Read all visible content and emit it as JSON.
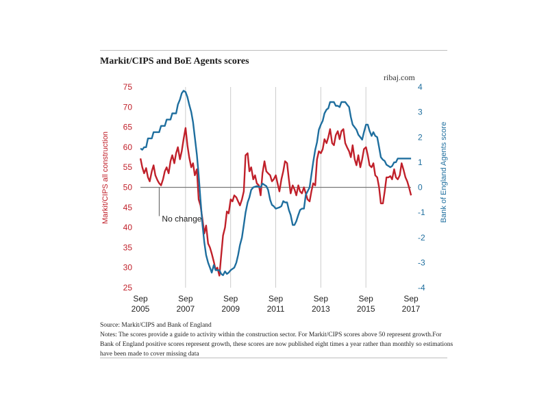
{
  "title": "Markit/CIPS and BoE Agents scores",
  "credit": "ribaj.com",
  "source": "Source: Markit/CIPS and Bank of England",
  "notes": "Notes: The scores provide a guide to activity within the construction sector. For Markit/CIPS scores above 50 represent growth.For Bank of England positive scores represent growth, these scores are now published eight times a year rather than monthly so estimations have been made to cover missing data",
  "colors": {
    "markit": "#c0202a",
    "boe": "#1e6e9e",
    "grid": "#cccccc",
    "baseline": "#777777"
  },
  "chart_data": {
    "type": "line",
    "ylabel_left": "Markit/CIPS all construction",
    "ylabel_right": "Bank of England Agents score",
    "ylim_left": [
      25,
      75
    ],
    "ylim_right": [
      -4,
      4
    ],
    "yticks_left": [
      25,
      30,
      35,
      40,
      45,
      50,
      55,
      60,
      65,
      70,
      75
    ],
    "yticks_right": [
      -4,
      -3,
      -2,
      -1,
      0,
      1,
      2,
      3,
      4
    ],
    "xlim": [
      2005.667,
      2017.667
    ],
    "xticks": [
      {
        "value": 2005.667,
        "line1": "Sep",
        "line2": "2005"
      },
      {
        "value": 2007.667,
        "line1": "Sep",
        "line2": "2007"
      },
      {
        "value": 2009.667,
        "line1": "Sep",
        "line2": "2009"
      },
      {
        "value": 2011.667,
        "line1": "Sep",
        "line2": "2011"
      },
      {
        "value": 2013.667,
        "line1": "Sep",
        "line2": "2013"
      },
      {
        "value": 2015.667,
        "line1": "Sep",
        "line2": "2015"
      },
      {
        "value": 2017.667,
        "line1": "Sep",
        "line2": "2017"
      }
    ],
    "grid_x": true,
    "reference_line": {
      "value": 50,
      "axis": "left"
    },
    "annotation": {
      "text": "No change",
      "x": 2006.5,
      "y": 50
    },
    "series": [
      {
        "name": "Markit/CIPS all construction",
        "axis": "left",
        "color": "#c0202a",
        "points": [
          [
            2005.67,
            57.2
          ],
          [
            2005.75,
            55.0
          ],
          [
            2005.83,
            53.5
          ],
          [
            2005.92,
            54.8
          ],
          [
            2006.0,
            52.5
          ],
          [
            2006.08,
            51.5
          ],
          [
            2006.17,
            54.0
          ],
          [
            2006.25,
            55.5
          ],
          [
            2006.33,
            53.0
          ],
          [
            2006.42,
            51.8
          ],
          [
            2006.5,
            51.0
          ],
          [
            2006.58,
            50.5
          ],
          [
            2006.67,
            52.0
          ],
          [
            2006.75,
            54.0
          ],
          [
            2006.83,
            55.0
          ],
          [
            2006.92,
            53.5
          ],
          [
            2007.0,
            56.5
          ],
          [
            2007.08,
            58.0
          ],
          [
            2007.17,
            56.0
          ],
          [
            2007.25,
            58.5
          ],
          [
            2007.33,
            60.0
          ],
          [
            2007.42,
            57.0
          ],
          [
            2007.5,
            59.0
          ],
          [
            2007.58,
            62.0
          ],
          [
            2007.67,
            64.8
          ],
          [
            2007.75,
            60.5
          ],
          [
            2007.83,
            57.5
          ],
          [
            2007.92,
            55.0
          ],
          [
            2008.0,
            56.0
          ],
          [
            2008.08,
            53.0
          ],
          [
            2008.17,
            54.5
          ],
          [
            2008.25,
            47.0
          ],
          [
            2008.33,
            45.5
          ],
          [
            2008.42,
            42.0
          ],
          [
            2008.5,
            38.5
          ],
          [
            2008.58,
            40.5
          ],
          [
            2008.67,
            36.0
          ],
          [
            2008.75,
            35.0
          ],
          [
            2008.83,
            33.5
          ],
          [
            2008.92,
            31.5
          ],
          [
            2009.0,
            29.5
          ],
          [
            2009.08,
            30.0
          ],
          [
            2009.17,
            28.0
          ],
          [
            2009.25,
            33.0
          ],
          [
            2009.33,
            38.0
          ],
          [
            2009.42,
            40.0
          ],
          [
            2009.5,
            44.0
          ],
          [
            2009.58,
            43.5
          ],
          [
            2009.67,
            47.0
          ],
          [
            2009.75,
            46.5
          ],
          [
            2009.83,
            48.0
          ],
          [
            2009.92,
            47.5
          ],
          [
            2010.0,
            46.5
          ],
          [
            2010.08,
            45.5
          ],
          [
            2010.17,
            47.0
          ],
          [
            2010.25,
            49.0
          ],
          [
            2010.33,
            58.0
          ],
          [
            2010.42,
            58.5
          ],
          [
            2010.5,
            54.0
          ],
          [
            2010.58,
            55.0
          ],
          [
            2010.67,
            52.0
          ],
          [
            2010.75,
            53.0
          ],
          [
            2010.83,
            51.0
          ],
          [
            2010.92,
            50.5
          ],
          [
            2011.0,
            48.0
          ],
          [
            2011.08,
            53.5
          ],
          [
            2011.17,
            56.5
          ],
          [
            2011.25,
            54.0
          ],
          [
            2011.33,
            53.5
          ],
          [
            2011.42,
            53.0
          ],
          [
            2011.5,
            51.5
          ],
          [
            2011.58,
            52.0
          ],
          [
            2011.67,
            53.0
          ],
          [
            2011.75,
            51.0
          ],
          [
            2011.83,
            49.0
          ],
          [
            2011.92,
            52.0
          ],
          [
            2012.0,
            54.0
          ],
          [
            2012.08,
            56.5
          ],
          [
            2012.17,
            56.0
          ],
          [
            2012.25,
            52.0
          ],
          [
            2012.33,
            48.5
          ],
          [
            2012.42,
            50.5
          ],
          [
            2012.5,
            49.5
          ],
          [
            2012.58,
            48.0
          ],
          [
            2012.67,
            50.5
          ],
          [
            2012.75,
            49.0
          ],
          [
            2012.83,
            48.5
          ],
          [
            2012.92,
            50.0
          ],
          [
            2013.0,
            48.5
          ],
          [
            2013.08,
            47.0
          ],
          [
            2013.17,
            46.5
          ],
          [
            2013.25,
            49.0
          ],
          [
            2013.33,
            51.0
          ],
          [
            2013.42,
            50.5
          ],
          [
            2013.5,
            57.0
          ],
          [
            2013.58,
            59.0
          ],
          [
            2013.67,
            58.5
          ],
          [
            2013.75,
            59.5
          ],
          [
            2013.83,
            62.0
          ],
          [
            2013.92,
            61.0
          ],
          [
            2014.0,
            62.5
          ],
          [
            2014.08,
            64.5
          ],
          [
            2014.17,
            61.0
          ],
          [
            2014.25,
            60.5
          ],
          [
            2014.33,
            63.0
          ],
          [
            2014.42,
            64.0
          ],
          [
            2014.5,
            62.0
          ],
          [
            2014.58,
            64.0
          ],
          [
            2014.67,
            64.5
          ],
          [
            2014.75,
            61.0
          ],
          [
            2014.83,
            60.0
          ],
          [
            2014.92,
            59.0
          ],
          [
            2015.0,
            57.5
          ],
          [
            2015.08,
            60.5
          ],
          [
            2015.17,
            57.0
          ],
          [
            2015.25,
            55.5
          ],
          [
            2015.33,
            58.0
          ],
          [
            2015.42,
            55.0
          ],
          [
            2015.5,
            57.0
          ],
          [
            2015.58,
            59.5
          ],
          [
            2015.67,
            60.0
          ],
          [
            2015.75,
            58.0
          ],
          [
            2015.83,
            55.5
          ],
          [
            2015.92,
            55.0
          ],
          [
            2016.0,
            56.0
          ],
          [
            2016.08,
            53.0
          ],
          [
            2016.17,
            52.5
          ],
          [
            2016.25,
            50.0
          ],
          [
            2016.33,
            46.0
          ],
          [
            2016.42,
            46.0
          ],
          [
            2016.5,
            49.0
          ],
          [
            2016.58,
            52.5
          ],
          [
            2016.67,
            52.5
          ],
          [
            2016.75,
            52.8
          ],
          [
            2016.83,
            52.0
          ],
          [
            2016.92,
            54.5
          ],
          [
            2017.0,
            52.5
          ],
          [
            2017.08,
            52.0
          ],
          [
            2017.17,
            53.0
          ],
          [
            2017.25,
            56.0
          ],
          [
            2017.33,
            54.5
          ],
          [
            2017.42,
            52.5
          ],
          [
            2017.5,
            51.5
          ],
          [
            2017.58,
            50.0
          ],
          [
            2017.67,
            48.0
          ]
        ]
      },
      {
        "name": "Bank of England Agents score",
        "axis": "right",
        "color": "#1e6e9e",
        "points": [
          [
            2005.67,
            1.55
          ],
          [
            2005.75,
            1.5
          ],
          [
            2005.83,
            1.6
          ],
          [
            2005.92,
            1.6
          ],
          [
            2006.0,
            1.95
          ],
          [
            2006.17,
            1.95
          ],
          [
            2006.25,
            2.2
          ],
          [
            2006.5,
            2.2
          ],
          [
            2006.58,
            2.45
          ],
          [
            2006.75,
            2.45
          ],
          [
            2006.83,
            2.7
          ],
          [
            2007.0,
            2.7
          ],
          [
            2007.08,
            2.95
          ],
          [
            2007.25,
            2.95
          ],
          [
            2007.33,
            3.3
          ],
          [
            2007.42,
            3.5
          ],
          [
            2007.5,
            3.75
          ],
          [
            2007.58,
            3.85
          ],
          [
            2007.67,
            3.8
          ],
          [
            2007.75,
            3.6
          ],
          [
            2007.83,
            3.3
          ],
          [
            2007.92,
            3.0
          ],
          [
            2008.0,
            2.6
          ],
          [
            2008.08,
            2.0
          ],
          [
            2008.17,
            1.3
          ],
          [
            2008.25,
            0.5
          ],
          [
            2008.33,
            -0.5
          ],
          [
            2008.42,
            -1.5
          ],
          [
            2008.5,
            -2.2
          ],
          [
            2008.58,
            -2.7
          ],
          [
            2008.67,
            -3.0
          ],
          [
            2008.75,
            -3.2
          ],
          [
            2008.83,
            -3.4
          ],
          [
            2008.92,
            -3.1
          ],
          [
            2009.0,
            -3.3
          ],
          [
            2009.17,
            -3.3
          ],
          [
            2009.25,
            -3.45
          ],
          [
            2009.33,
            -3.5
          ],
          [
            2009.42,
            -3.35
          ],
          [
            2009.5,
            -3.45
          ],
          [
            2009.58,
            -3.4
          ],
          [
            2009.67,
            -3.3
          ],
          [
            2009.83,
            -3.2
          ],
          [
            2009.92,
            -3.0
          ],
          [
            2010.0,
            -2.7
          ],
          [
            2010.08,
            -2.3
          ],
          [
            2010.17,
            -2.0
          ],
          [
            2010.25,
            -1.5
          ],
          [
            2010.33,
            -1.0
          ],
          [
            2010.42,
            -0.6
          ],
          [
            2010.5,
            -0.4
          ],
          [
            2010.58,
            -0.1
          ],
          [
            2010.67,
            0.0
          ],
          [
            2010.83,
            0.05
          ],
          [
            2011.0,
            0.0
          ],
          [
            2011.08,
            0.15
          ],
          [
            2011.25,
            0.05
          ],
          [
            2011.33,
            -0.1
          ],
          [
            2011.42,
            -0.5
          ],
          [
            2011.5,
            -0.7
          ],
          [
            2011.58,
            -0.75
          ],
          [
            2011.67,
            -0.85
          ],
          [
            2011.83,
            -0.8
          ],
          [
            2011.92,
            -0.75
          ],
          [
            2012.0,
            -0.55
          ],
          [
            2012.08,
            -0.6
          ],
          [
            2012.17,
            -0.6
          ],
          [
            2012.25,
            -0.9
          ],
          [
            2012.33,
            -1.1
          ],
          [
            2012.42,
            -1.5
          ],
          [
            2012.5,
            -1.5
          ],
          [
            2012.58,
            -1.35
          ],
          [
            2012.67,
            -1.1
          ],
          [
            2012.75,
            -0.9
          ],
          [
            2012.83,
            -0.85
          ],
          [
            2012.92,
            -0.85
          ],
          [
            2013.0,
            -0.3
          ],
          [
            2013.17,
            0.0
          ],
          [
            2013.25,
            0.5
          ],
          [
            2013.33,
            1.0
          ],
          [
            2013.42,
            1.5
          ],
          [
            2013.5,
            1.8
          ],
          [
            2013.58,
            2.3
          ],
          [
            2013.67,
            2.5
          ],
          [
            2013.75,
            2.65
          ],
          [
            2013.83,
            2.95
          ],
          [
            2013.92,
            3.1
          ],
          [
            2014.0,
            3.15
          ],
          [
            2014.08,
            3.4
          ],
          [
            2014.25,
            3.4
          ],
          [
            2014.33,
            3.25
          ],
          [
            2014.42,
            3.25
          ],
          [
            2014.5,
            3.2
          ],
          [
            2014.58,
            3.4
          ],
          [
            2014.75,
            3.4
          ],
          [
            2014.83,
            3.3
          ],
          [
            2014.92,
            3.2
          ],
          [
            2015.0,
            2.8
          ],
          [
            2015.08,
            2.5
          ],
          [
            2015.25,
            2.3
          ],
          [
            2015.33,
            2.1
          ],
          [
            2015.42,
            2.0
          ],
          [
            2015.5,
            1.9
          ],
          [
            2015.58,
            2.2
          ],
          [
            2015.67,
            2.5
          ],
          [
            2015.75,
            2.5
          ],
          [
            2015.83,
            2.25
          ],
          [
            2015.92,
            2.05
          ],
          [
            2016.0,
            2.2
          ],
          [
            2016.08,
            2.05
          ],
          [
            2016.17,
            2.0
          ],
          [
            2016.25,
            1.6
          ],
          [
            2016.33,
            1.2
          ],
          [
            2016.42,
            1.1
          ],
          [
            2016.5,
            1.05
          ],
          [
            2016.58,
            0.9
          ],
          [
            2016.67,
            0.85
          ],
          [
            2016.75,
            0.8
          ],
          [
            2016.83,
            0.85
          ],
          [
            2016.92,
            1.0
          ],
          [
            2017.0,
            1.0
          ],
          [
            2017.08,
            1.15
          ],
          [
            2017.17,
            1.15
          ],
          [
            2017.67,
            1.15
          ]
        ]
      }
    ]
  }
}
